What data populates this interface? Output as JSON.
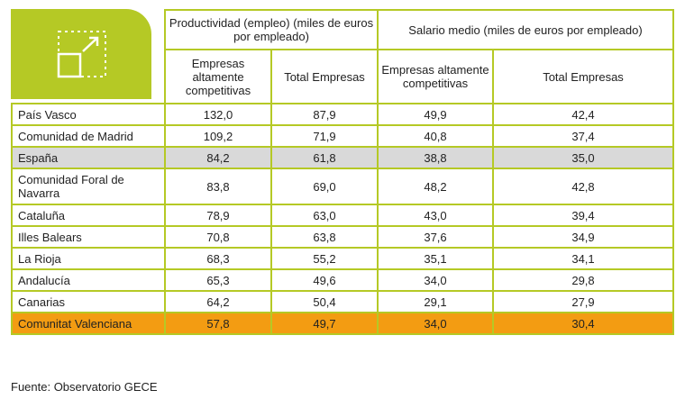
{
  "chart_data": {
    "type": "table",
    "group_headers": [
      "Productividad (empleo) (miles de euros por empleado)",
      "Salario medio (miles de euros por empleado)"
    ],
    "sub_headers": [
      "Empresas altamente competitivas",
      "Total Empresas",
      "Empresas altamente competitivas",
      "Total Empresas"
    ],
    "rows": [
      {
        "region": "País Vasco",
        "values": [
          "132,0",
          "87,9",
          "49,9",
          "42,4"
        ]
      },
      {
        "region": "Comunidad de Madrid",
        "values": [
          "109,2",
          "71,9",
          "40,8",
          "37,4"
        ]
      },
      {
        "region": "España",
        "values": [
          "84,2",
          "61,8",
          "38,8",
          "35,0"
        ]
      },
      {
        "region": "Comunidad Foral de Navarra",
        "values": [
          "83,8",
          "69,0",
          "48,2",
          "42,8"
        ]
      },
      {
        "region": "Cataluña",
        "values": [
          "78,9",
          "63,0",
          "43,0",
          "39,4"
        ]
      },
      {
        "region": "Illes Balears",
        "values": [
          "70,8",
          "63,8",
          "37,6",
          "34,9"
        ]
      },
      {
        "region": "La Rioja",
        "values": [
          "68,3",
          "55,2",
          "35,1",
          "34,1"
        ]
      },
      {
        "region": "Andalucía",
        "values": [
          "65,3",
          "49,6",
          "34,0",
          "29,8"
        ]
      },
      {
        "region": "Canarias",
        "values": [
          "64,2",
          "50,4",
          "29,1",
          "27,9"
        ]
      },
      {
        "region": "Comunitat Valenciana",
        "values": [
          "57,8",
          "49,7",
          "34,0",
          "30,4"
        ]
      }
    ],
    "source": "Fuente: Observatorio GECE"
  },
  "colors": {
    "accent": "#b5c925",
    "highlight_gray": "#d9d9d9",
    "highlight_orange": "#f39c12"
  },
  "icons": {
    "logo": "expand-arrow-icon"
  }
}
